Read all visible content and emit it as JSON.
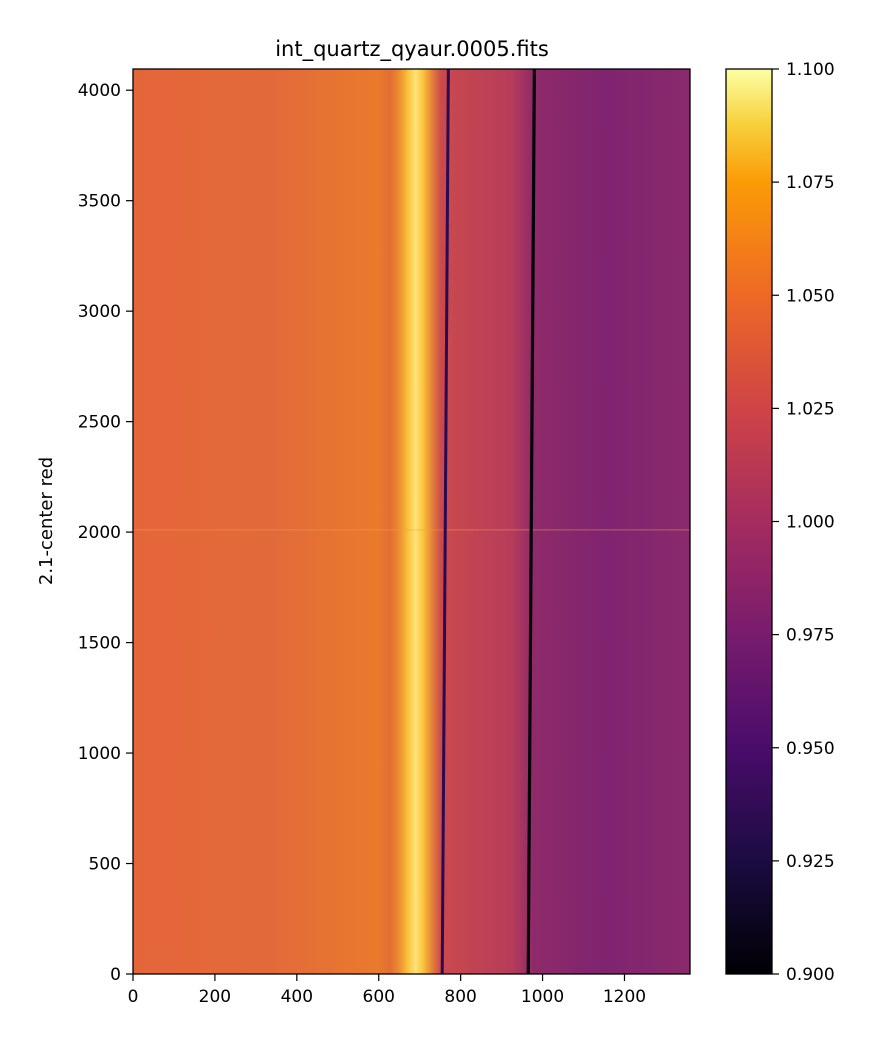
{
  "chart_data": {
    "type": "heatmap",
    "title": "int_quartz_qyaur.0005.fits",
    "xlabel": "",
    "ylabel": "2.1-center red",
    "xlim": [
      0,
      1360
    ],
    "ylim": [
      0,
      4096
    ],
    "x_ticks": [
      0,
      200,
      400,
      600,
      800,
      1000,
      1200
    ],
    "x_tick_labels": [
      "0",
      "200",
      "400",
      "600",
      "800",
      "1000",
      "1200"
    ],
    "y_ticks": [
      0,
      500,
      1000,
      1500,
      2000,
      2500,
      3000,
      3500,
      4000
    ],
    "y_tick_labels": [
      "0",
      "500",
      "1000",
      "1500",
      "2000",
      "2500",
      "3000",
      "3500",
      "4000"
    ],
    "colormap": "inferno",
    "colorbar": {
      "range": [
        0.9,
        1.1
      ],
      "ticks": [
        0.9,
        0.925,
        0.95,
        0.975,
        1.0,
        1.025,
        1.05,
        1.075,
        1.1
      ],
      "tick_labels": [
        "0.900",
        "0.925",
        "0.950",
        "0.975",
        "1.000",
        "1.025",
        "1.050",
        "1.075",
        "1.100"
      ]
    },
    "features": {
      "bright_column": {
        "x_center": 690,
        "width": 70,
        "value": 1.075
      },
      "dark_lines": [
        {
          "x_bottom": 755,
          "x_top": 770,
          "value": 0.93
        },
        {
          "x_bottom": 965,
          "x_top": 980,
          "value": 0.9
        }
      ],
      "left_region_value": 1.035,
      "right_region_value": 0.975,
      "fringe_region_y_max": 1800,
      "horizontal_feature_y": 2010
    },
    "grid": false,
    "legend": "none"
  }
}
